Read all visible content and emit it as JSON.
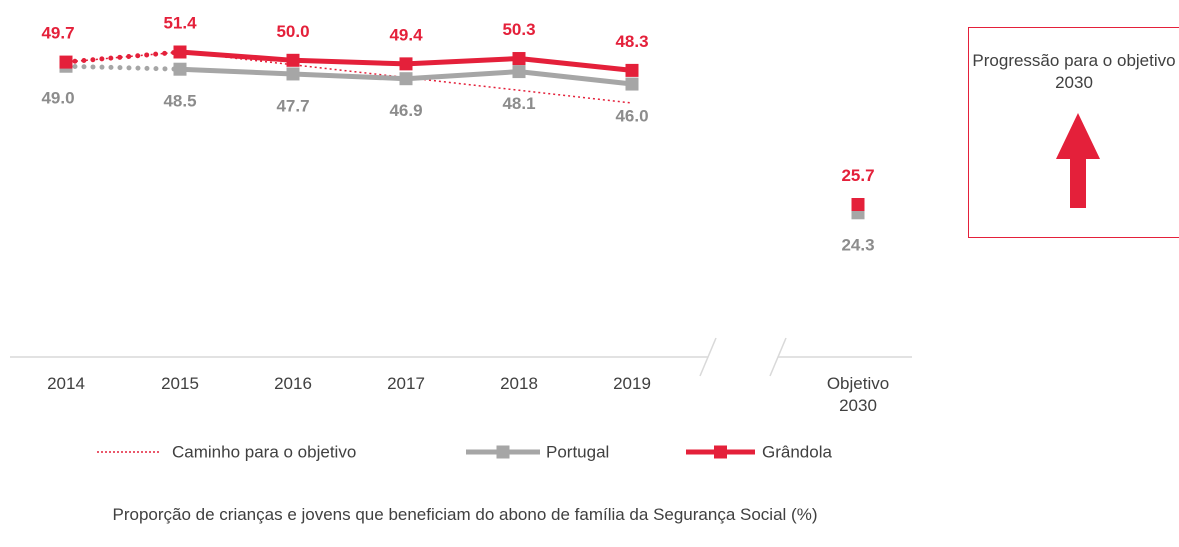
{
  "chart_data": {
    "type": "line",
    "title": "Proporção de crianças e jovens que beneficiam do abono de família da Segurança Social (%)",
    "categories": [
      "2014",
      "2015",
      "2016",
      "2017",
      "2018",
      "2019",
      "Objetivo 2030"
    ],
    "series": [
      {
        "name": "Caminho para o objetivo",
        "color": "#e4203a",
        "values": [
          49.7,
          51.4,
          49.25,
          47.1,
          44.95,
          42.8,
          null
        ]
      },
      {
        "name": "Portugal",
        "color": "#a6a6a6",
        "values": [
          49.0,
          48.5,
          47.7,
          46.9,
          48.1,
          46.0,
          24.3
        ],
        "value_labels": [
          "49.0",
          "48.5",
          "47.7",
          "46.9",
          "48.1",
          "46.0",
          "24.3"
        ]
      },
      {
        "name": "Grândola",
        "color": "#e4203a",
        "values": [
          49.7,
          51.4,
          50.0,
          49.4,
          50.3,
          48.3,
          25.7
        ],
        "value_labels": [
          "49.7",
          "51.4",
          "50.0",
          "49.4",
          "50.3",
          "48.3",
          "25.7"
        ]
      }
    ],
    "annotation": "Progressão para o objetivo 2030",
    "legend": "bottom"
  }
}
